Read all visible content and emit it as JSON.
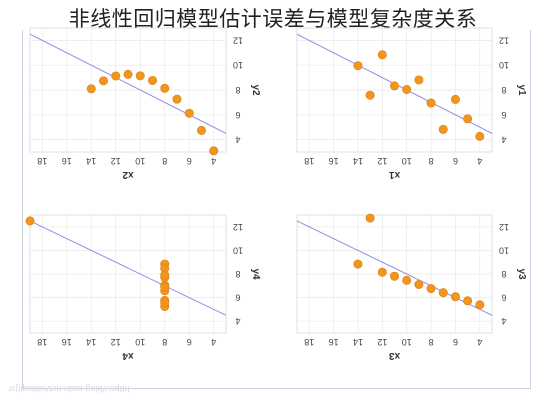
{
  "title": "非线性回归模型估计误差与模型复杂度关系",
  "watermark": "https://blog.csdn.net/sddxqlrjxr",
  "colors": {
    "points": "#f0961e",
    "line": "#8b8fe6",
    "grid": "#e8e8e8",
    "frame": "#c9d4e2"
  },
  "chart_data": [
    {
      "type": "scatter",
      "panel": "top-left",
      "rotated": "180deg",
      "xlabel": "x2",
      "ylabel": "y2",
      "xlim": [
        3,
        19
      ],
      "ylim": [
        3,
        13
      ],
      "xticks": [
        4,
        6,
        8,
        10,
        12,
        14,
        16,
        18
      ],
      "yticks": [
        4,
        6,
        8,
        10,
        12
      ],
      "points": [
        [
          10,
          9.14
        ],
        [
          8,
          8.14
        ],
        [
          13,
          8.74
        ],
        [
          9,
          8.77
        ],
        [
          11,
          9.26
        ],
        [
          14,
          8.1
        ],
        [
          6,
          6.13
        ],
        [
          4,
          3.1
        ],
        [
          12,
          9.13
        ],
        [
          7,
          7.26
        ],
        [
          5,
          4.74
        ]
      ],
      "fit_line": {
        "intercept": 3.0,
        "slope": 0.5
      }
    },
    {
      "type": "scatter",
      "panel": "top-right",
      "rotated": "180deg",
      "xlabel": "x1",
      "ylabel": "y1",
      "xlim": [
        3,
        19
      ],
      "ylim": [
        3,
        13
      ],
      "xticks": [
        4,
        6,
        8,
        10,
        12,
        14,
        16,
        18
      ],
      "yticks": [
        4,
        6,
        8,
        10,
        12
      ],
      "points": [
        [
          10,
          8.04
        ],
        [
          8,
          6.95
        ],
        [
          13,
          7.58
        ],
        [
          9,
          8.81
        ],
        [
          11,
          8.33
        ],
        [
          14,
          9.96
        ],
        [
          6,
          7.24
        ],
        [
          4,
          4.26
        ],
        [
          12,
          10.84
        ],
        [
          7,
          4.82
        ],
        [
          5,
          5.68
        ]
      ],
      "fit_line": {
        "intercept": 3.0,
        "slope": 0.5
      }
    },
    {
      "type": "scatter",
      "panel": "bottom-left",
      "rotated": "180deg",
      "xlabel": "x4",
      "ylabel": "y4",
      "xlim": [
        3,
        19
      ],
      "ylim": [
        3,
        13
      ],
      "xticks": [
        4,
        6,
        8,
        10,
        12,
        14,
        16,
        18
      ],
      "yticks": [
        4,
        6,
        8,
        10,
        12
      ],
      "points": [
        [
          8,
          6.58
        ],
        [
          8,
          5.76
        ],
        [
          8,
          7.71
        ],
        [
          8,
          8.84
        ],
        [
          8,
          8.47
        ],
        [
          8,
          7.04
        ],
        [
          8,
          5.25
        ],
        [
          19,
          12.5
        ],
        [
          8,
          5.56
        ],
        [
          8,
          7.91
        ],
        [
          8,
          6.89
        ]
      ],
      "fit_line": {
        "intercept": 3.0,
        "slope": 0.5
      }
    },
    {
      "type": "scatter",
      "panel": "bottom-right",
      "rotated": "180deg",
      "xlabel": "x3",
      "ylabel": "y3",
      "xlim": [
        3,
        19
      ],
      "ylim": [
        3,
        13
      ],
      "xticks": [
        4,
        6,
        8,
        10,
        12,
        14,
        16,
        18
      ],
      "yticks": [
        4,
        6,
        8,
        10,
        12
      ],
      "points": [
        [
          10,
          7.46
        ],
        [
          8,
          6.77
        ],
        [
          13,
          12.74
        ],
        [
          9,
          7.11
        ],
        [
          11,
          7.81
        ],
        [
          14,
          8.84
        ],
        [
          6,
          6.08
        ],
        [
          4,
          5.39
        ],
        [
          12,
          8.15
        ],
        [
          7,
          6.42
        ],
        [
          5,
          5.73
        ]
      ],
      "fit_line": {
        "intercept": 3.0,
        "slope": 0.5
      }
    }
  ]
}
